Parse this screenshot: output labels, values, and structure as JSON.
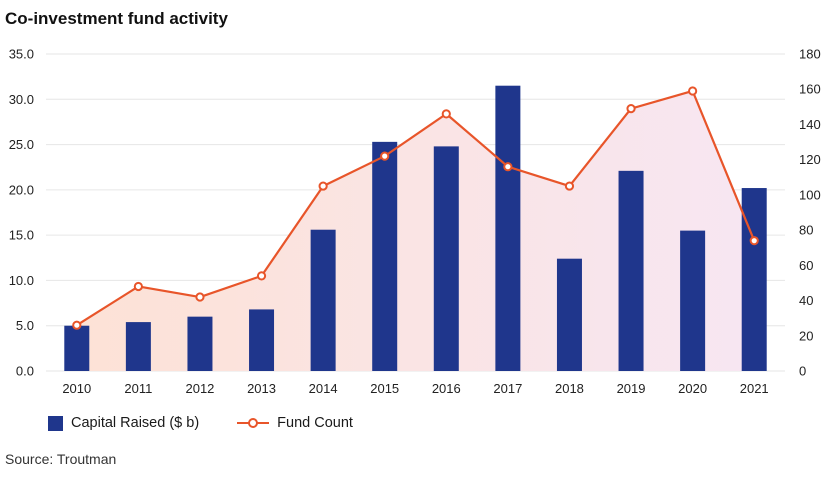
{
  "title": "Co-investment fund activity",
  "source": "Source: Troutman",
  "colors": {
    "bar": "#1f368c",
    "line": "#e8552a",
    "area_start": "#fde2d6",
    "area_end": "#f7e6f2",
    "grid": "#e6e6e6"
  },
  "chart_data": {
    "type": "bar",
    "categories": [
      "2010",
      "2011",
      "2012",
      "2013",
      "2014",
      "2015",
      "2016",
      "2017",
      "2018",
      "2019",
      "2020",
      "2021"
    ],
    "series": [
      {
        "name": "Capital Raised ($ b)",
        "type": "bar",
        "axis": "left",
        "values": [
          5.0,
          5.4,
          6.0,
          6.8,
          15.6,
          25.3,
          24.8,
          31.5,
          12.4,
          22.1,
          15.5,
          20.2
        ]
      },
      {
        "name": "Fund Count",
        "type": "line",
        "axis": "right",
        "values": [
          26,
          48,
          42,
          54,
          105,
          122,
          146,
          116,
          105,
          149,
          159,
          74
        ]
      }
    ],
    "y_left": {
      "ylim": [
        0,
        35
      ],
      "ticks": [
        "0.0",
        "5.0",
        "10.0",
        "15.0",
        "20.0",
        "25.0",
        "30.0",
        "35.0"
      ]
    },
    "y_right": {
      "ylim": [
        0,
        180
      ],
      "ticks": [
        "0",
        "20",
        "40",
        "60",
        "80",
        "100",
        "120",
        "140",
        "160",
        "180"
      ]
    },
    "grid": true,
    "legend": "bottom-left"
  }
}
